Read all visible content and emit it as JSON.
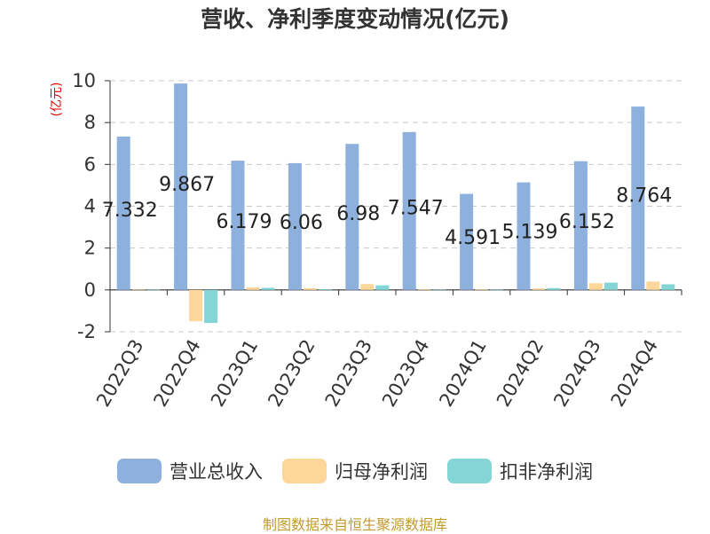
{
  "chart_data": {
    "type": "bar",
    "title": "营收、净利季度变动情况(亿元)",
    "ylabel": "(亿元)",
    "xlabel": "",
    "categories": [
      "2022Q3",
      "2022Q4",
      "2023Q1",
      "2023Q2",
      "2023Q3",
      "2023Q4",
      "2024Q1",
      "2024Q2",
      "2024Q3",
      "2024Q4"
    ],
    "yticks": [
      -2,
      0,
      2,
      4,
      6,
      8,
      10
    ],
    "ylim": [
      -2,
      10
    ],
    "grid": true,
    "legend_position": "bottom",
    "series": [
      {
        "name": "营业总收入",
        "color": "#8eb0dc",
        "values": [
          7.332,
          9.867,
          6.179,
          6.06,
          6.98,
          7.547,
          4.591,
          5.139,
          6.152,
          8.764
        ],
        "labels": [
          "7.332",
          "9.867",
          "6.179",
          "6.06",
          "6.98",
          "7.547",
          "4.591",
          "5.139",
          "6.152",
          "8.764"
        ]
      },
      {
        "name": "归母净利润",
        "color": "#fdd79a",
        "values": [
          0.02,
          -1.5,
          0.12,
          0.08,
          0.28,
          0.03,
          0.03,
          0.07,
          0.32,
          0.4
        ]
      },
      {
        "name": "扣非净利润",
        "color": "#84d5d6",
        "values": [
          0.01,
          -1.58,
          0.1,
          0.04,
          0.22,
          0.02,
          0.01,
          0.09,
          0.35,
          0.27
        ]
      }
    ]
  },
  "legend_items": [
    "营业总收入",
    "归母净利润",
    "扣非净利润"
  ],
  "source": "制图数据来自恒生聚源数据库"
}
